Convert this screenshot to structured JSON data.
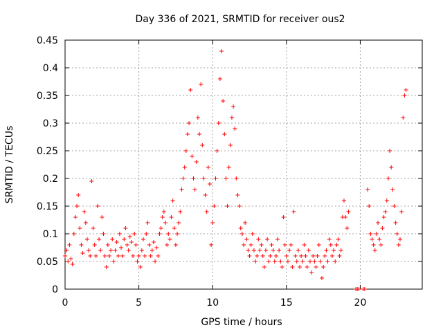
{
  "chart_data": {
    "type": "scatter",
    "title": "Day 336 of 2021, SRMTID for receiver ous2",
    "xlabel": "GPS time / hours",
    "ylabel": "SRMTID / TECUs",
    "xlim": [
      0,
      24.2
    ],
    "ylim": [
      0,
      0.45
    ],
    "xticks": [
      0,
      5,
      10,
      15,
      20
    ],
    "xtick_labels": [
      "0",
      "5",
      "10",
      "15",
      "20"
    ],
    "yticks": [
      0,
      0.05,
      0.1,
      0.15,
      0.2,
      0.25,
      0.3,
      0.35,
      0.4,
      0.45
    ],
    "ytick_labels": [
      "0",
      "0.05",
      "0.1",
      "0.15",
      "0.2",
      "0.25",
      "0.3",
      "0.35",
      "0.4",
      "0.45"
    ],
    "grid": true,
    "marker": "+",
    "color": "#ff0000",
    "series": [
      {
        "name": "ous2",
        "points": [
          [
            0.0,
            0.06
          ],
          [
            0.1,
            0.07
          ],
          [
            0.2,
            0.05
          ],
          [
            0.3,
            0.08
          ],
          [
            0.4,
            0.055
          ],
          [
            0.5,
            0.045
          ],
          [
            0.6,
            0.1
          ],
          [
            0.7,
            0.13
          ],
          [
            0.8,
            0.15
          ],
          [
            0.9,
            0.17
          ],
          [
            1.0,
            0.11
          ],
          [
            1.1,
            0.08
          ],
          [
            1.2,
            0.065
          ],
          [
            1.3,
            0.14
          ],
          [
            1.4,
            0.12
          ],
          [
            1.5,
            0.09
          ],
          [
            1.6,
            0.07
          ],
          [
            1.7,
            0.06
          ],
          [
            1.8,
            0.195
          ],
          [
            1.9,
            0.11
          ],
          [
            2.0,
            0.08
          ],
          [
            2.1,
            0.06
          ],
          [
            2.2,
            0.15
          ],
          [
            2.3,
            0.09
          ],
          [
            2.4,
            0.07
          ],
          [
            2.5,
            0.13
          ],
          [
            2.6,
            0.1
          ],
          [
            2.7,
            0.06
          ],
          [
            2.8,
            0.04
          ],
          [
            2.9,
            0.08
          ],
          [
            3.0,
            0.06
          ],
          [
            3.1,
            0.07
          ],
          [
            3.2,
            0.09
          ],
          [
            3.3,
            0.05
          ],
          [
            3.4,
            0.07
          ],
          [
            3.5,
            0.085
          ],
          [
            3.6,
            0.06
          ],
          [
            3.7,
            0.1
          ],
          [
            3.8,
            0.075
          ],
          [
            3.9,
            0.06
          ],
          [
            4.0,
            0.09
          ],
          [
            4.1,
            0.11
          ],
          [
            4.2,
            0.08
          ],
          [
            4.3,
            0.07
          ],
          [
            4.4,
            0.095
          ],
          [
            4.5,
            0.085
          ],
          [
            4.6,
            0.06
          ],
          [
            4.7,
            0.1
          ],
          [
            4.8,
            0.08
          ],
          [
            4.9,
            0.05
          ],
          [
            5.0,
            0.06
          ],
          [
            5.1,
            0.04
          ],
          [
            5.2,
            0.07
          ],
          [
            5.3,
            0.09
          ],
          [
            5.4,
            0.06
          ],
          [
            5.5,
            0.1
          ],
          [
            5.6,
            0.12
          ],
          [
            5.7,
            0.08
          ],
          [
            5.8,
            0.06
          ],
          [
            5.9,
            0.07
          ],
          [
            6.0,
            0.085
          ],
          [
            6.1,
            0.05
          ],
          [
            6.2,
            0.075
          ],
          [
            6.3,
            0.06
          ],
          [
            6.4,
            0.1
          ],
          [
            6.5,
            0.11
          ],
          [
            6.6,
            0.13
          ],
          [
            6.7,
            0.14
          ],
          [
            6.8,
            0.12
          ],
          [
            6.9,
            0.08
          ],
          [
            7.0,
            0.1
          ],
          [
            7.1,
            0.09
          ],
          [
            7.2,
            0.13
          ],
          [
            7.3,
            0.16
          ],
          [
            7.4,
            0.11
          ],
          [
            7.5,
            0.08
          ],
          [
            7.6,
            0.1
          ],
          [
            7.7,
            0.12
          ],
          [
            7.8,
            0.14
          ],
          [
            7.9,
            0.18
          ],
          [
            8.0,
            0.2
          ],
          [
            8.1,
            0.22
          ],
          [
            8.2,
            0.25
          ],
          [
            8.3,
            0.28
          ],
          [
            8.4,
            0.3
          ],
          [
            8.5,
            0.36
          ],
          [
            8.6,
            0.24
          ],
          [
            8.7,
            0.2
          ],
          [
            8.8,
            0.18
          ],
          [
            8.9,
            0.23
          ],
          [
            9.0,
            0.31
          ],
          [
            9.1,
            0.28
          ],
          [
            9.2,
            0.37
          ],
          [
            9.3,
            0.26
          ],
          [
            9.4,
            0.2
          ],
          [
            9.5,
            0.17
          ],
          [
            9.6,
            0.14
          ],
          [
            9.7,
            0.22
          ],
          [
            9.8,
            0.19
          ],
          [
            9.9,
            0.08
          ],
          [
            10.0,
            0.12
          ],
          [
            10.1,
            0.15
          ],
          [
            10.2,
            0.2
          ],
          [
            10.3,
            0.25
          ],
          [
            10.4,
            0.3
          ],
          [
            10.5,
            0.38
          ],
          [
            10.6,
            0.43
          ],
          [
            10.7,
            0.34
          ],
          [
            10.8,
            0.28
          ],
          [
            10.9,
            0.2
          ],
          [
            11.0,
            0.15
          ],
          [
            11.1,
            0.22
          ],
          [
            11.2,
            0.26
          ],
          [
            11.3,
            0.31
          ],
          [
            11.4,
            0.33
          ],
          [
            11.5,
            0.29
          ],
          [
            11.6,
            0.2
          ],
          [
            11.7,
            0.17
          ],
          [
            11.8,
            0.15
          ],
          [
            11.9,
            0.11
          ],
          [
            12.0,
            0.1
          ],
          [
            12.1,
            0.08
          ],
          [
            12.2,
            0.12
          ],
          [
            12.3,
            0.09
          ],
          [
            12.4,
            0.07
          ],
          [
            12.5,
            0.06
          ],
          [
            12.6,
            0.08
          ],
          [
            12.7,
            0.1
          ],
          [
            12.8,
            0.07
          ],
          [
            12.9,
            0.05
          ],
          [
            13.0,
            0.06
          ],
          [
            13.1,
            0.09
          ],
          [
            13.2,
            0.07
          ],
          [
            13.3,
            0.08
          ],
          [
            13.4,
            0.06
          ],
          [
            13.5,
            0.04
          ],
          [
            13.6,
            0.07
          ],
          [
            13.7,
            0.09
          ],
          [
            13.8,
            0.05
          ],
          [
            13.9,
            0.06
          ],
          [
            14.0,
            0.08
          ],
          [
            14.1,
            0.07
          ],
          [
            14.2,
            0.05
          ],
          [
            14.3,
            0.06
          ],
          [
            14.4,
            0.09
          ],
          [
            14.5,
            0.07
          ],
          [
            14.6,
            0.05
          ],
          [
            14.7,
            0.04
          ],
          [
            14.8,
            0.13
          ],
          [
            14.9,
            0.08
          ],
          [
            15.0,
            0.06
          ],
          [
            15.1,
            0.05
          ],
          [
            15.2,
            0.07
          ],
          [
            15.3,
            0.08
          ],
          [
            15.4,
            0.04
          ],
          [
            15.5,
            0.14
          ],
          [
            15.6,
            0.06
          ],
          [
            15.7,
            0.05
          ],
          [
            15.8,
            0.07
          ],
          [
            15.9,
            0.04
          ],
          [
            16.0,
            0.06
          ],
          [
            16.1,
            0.05
          ],
          [
            16.2,
            0.08
          ],
          [
            16.3,
            0.06
          ],
          [
            16.4,
            0.04
          ],
          [
            16.5,
            0.07
          ],
          [
            16.6,
            0.05
          ],
          [
            16.7,
            0.03
          ],
          [
            16.8,
            0.06
          ],
          [
            16.9,
            0.05
          ],
          [
            17.0,
            0.04
          ],
          [
            17.1,
            0.06
          ],
          [
            17.2,
            0.08
          ],
          [
            17.3,
            0.05
          ],
          [
            17.4,
            0.02
          ],
          [
            17.5,
            0.04
          ],
          [
            17.6,
            0.06
          ],
          [
            17.7,
            0.07
          ],
          [
            17.8,
            0.05
          ],
          [
            17.9,
            0.09
          ],
          [
            18.0,
            0.08
          ],
          [
            18.1,
            0.06
          ],
          [
            18.2,
            0.07
          ],
          [
            18.3,
            0.05
          ],
          [
            18.4,
            0.08
          ],
          [
            18.5,
            0.09
          ],
          [
            18.6,
            0.06
          ],
          [
            18.7,
            0.07
          ],
          [
            18.8,
            0.13
          ],
          [
            18.9,
            0.16
          ],
          [
            19.0,
            0.13
          ],
          [
            19.1,
            0.11
          ],
          [
            19.2,
            0.14
          ],
          [
            19.7,
            0.0
          ],
          [
            19.8,
            0.0
          ],
          [
            19.9,
            0.0
          ],
          [
            20.2,
            0.0
          ],
          [
            20.3,
            0.0
          ],
          [
            20.5,
            0.18
          ],
          [
            20.6,
            0.15
          ],
          [
            20.7,
            0.1
          ],
          [
            20.8,
            0.09
          ],
          [
            20.9,
            0.08
          ],
          [
            21.0,
            0.07
          ],
          [
            21.1,
            0.1
          ],
          [
            21.2,
            0.12
          ],
          [
            21.3,
            0.09
          ],
          [
            21.4,
            0.08
          ],
          [
            21.5,
            0.11
          ],
          [
            21.6,
            0.13
          ],
          [
            21.7,
            0.14
          ],
          [
            21.8,
            0.16
          ],
          [
            21.9,
            0.2
          ],
          [
            22.0,
            0.25
          ],
          [
            22.1,
            0.22
          ],
          [
            22.2,
            0.18
          ],
          [
            22.3,
            0.15
          ],
          [
            22.4,
            0.12
          ],
          [
            22.5,
            0.1
          ],
          [
            22.6,
            0.08
          ],
          [
            22.7,
            0.09
          ],
          [
            22.8,
            0.14
          ],
          [
            22.9,
            0.31
          ],
          [
            23.0,
            0.35
          ],
          [
            23.1,
            0.36
          ]
        ]
      }
    ]
  }
}
